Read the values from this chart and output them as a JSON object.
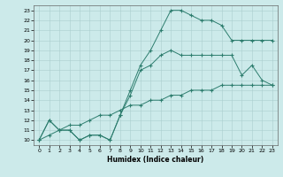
{
  "xlabel": "Humidex (Indice chaleur)",
  "xlim": [
    -0.5,
    23.5
  ],
  "ylim": [
    9.5,
    23.5
  ],
  "yticks": [
    10,
    11,
    12,
    13,
    14,
    15,
    16,
    17,
    18,
    19,
    20,
    21,
    22,
    23
  ],
  "xticks": [
    0,
    1,
    2,
    3,
    4,
    5,
    6,
    7,
    8,
    9,
    10,
    11,
    12,
    13,
    14,
    15,
    16,
    17,
    18,
    19,
    20,
    21,
    22,
    23
  ],
  "line_color": "#2d7d6e",
  "bg_color": "#cceaea",
  "grid_color": "#aacfcf",
  "line1_y": [
    10,
    12,
    11,
    11,
    10,
    10.5,
    10.5,
    10,
    12.5,
    15,
    17.5,
    19,
    21,
    23,
    23,
    22.5,
    22,
    22,
    21.5,
    20,
    20,
    20,
    20,
    20
  ],
  "line2_y": [
    10,
    12,
    11,
    11,
    10,
    10.5,
    10.5,
    10,
    12.5,
    14.5,
    17,
    17.5,
    18.5,
    19,
    18.5,
    18.5,
    18.5,
    18.5,
    18.5,
    18.5,
    16.5,
    17.5,
    16,
    15.5
  ],
  "line3_y": [
    10,
    10.5,
    11,
    11.5,
    11.5,
    12,
    12.5,
    12.5,
    13,
    13.5,
    13.5,
    14,
    14,
    14.5,
    14.5,
    15,
    15,
    15,
    15.5,
    15.5,
    15.5,
    15.5,
    15.5,
    15.5
  ]
}
